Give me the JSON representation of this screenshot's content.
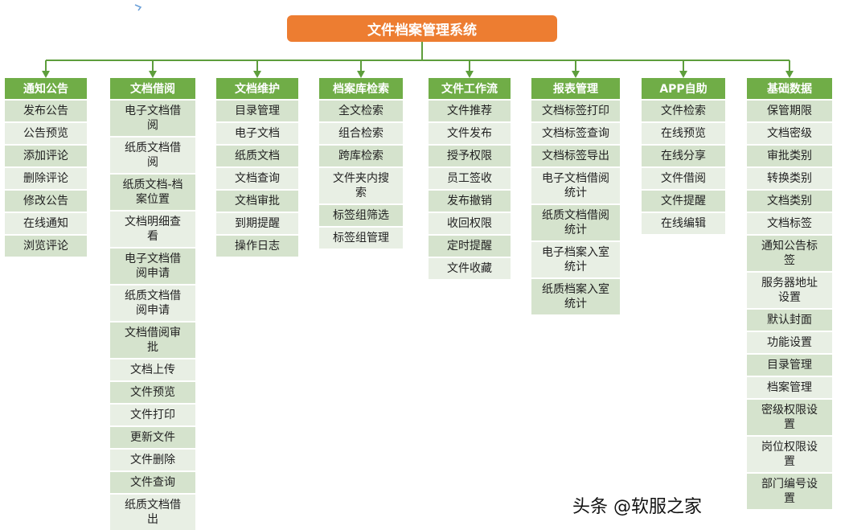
{
  "title": "文件档案管理系统",
  "colors": {
    "root": "#ED7D31",
    "header": "#70AD47",
    "cell_dark": "#D5E3CD",
    "cell_light": "#E8EFE4",
    "connector": "#5E9E3C"
  },
  "columns": [
    {
      "label": "通知公告",
      "items": [
        "发布公告",
        "公告预览",
        "添加评论",
        "删除评论",
        "修改公告",
        "在线通知",
        "浏览评论"
      ]
    },
    {
      "label": "文档借阅",
      "items": [
        "电子文档借阅",
        "纸质文档借阅",
        "纸质文档-档案位置",
        "文档明细查看",
        "电子文档借阅申请",
        "纸质文档借阅申请",
        "文档借阅审批",
        "文档上传",
        "文件预览",
        "文件打印",
        "更新文件",
        "文件删除",
        "文件查询",
        "纸质文档借出"
      ]
    },
    {
      "label": "文档维护",
      "items": [
        "目录管理",
        "电子文档",
        "纸质文档",
        "文档查询",
        "文档审批",
        "到期提醒",
        "操作日志"
      ]
    },
    {
      "label": "档案库检索",
      "items": [
        "全文检索",
        "组合检索",
        "跨库检索",
        "文件夹内搜索",
        "标签组筛选",
        "标签组管理"
      ]
    },
    {
      "label": "文件工作流",
      "items": [
        "文件推荐",
        "文件发布",
        "授予权限",
        "员工签收",
        "发布撤销",
        "收回权限",
        "定时提醒",
        "文件收藏"
      ]
    },
    {
      "label": "报表管理",
      "items": [
        "文档标签打印",
        "文档标签查询",
        "文档标签导出",
        "电子文档借阅统计",
        "纸质文档借阅统计",
        "电子档案入室统计",
        "纸质档案入室统计"
      ]
    },
    {
      "label": "APP自助",
      "items": [
        "文件检索",
        "在线预览",
        "在线分享",
        "文件借阅",
        "文件提醒",
        "在线编辑"
      ]
    },
    {
      "label": "基础数据",
      "items": [
        "保管期限",
        "文档密级",
        "审批类别",
        "转换类别",
        "文档类别",
        "文档标签",
        "通知公告标签",
        "服务器地址设置",
        "默认封面",
        "功能设置",
        "目录管理",
        "档案管理",
        "密级权限设置",
        "岗位权限设置",
        "部门编号设置"
      ]
    }
  ],
  "watermark": "头条 @软服之家"
}
